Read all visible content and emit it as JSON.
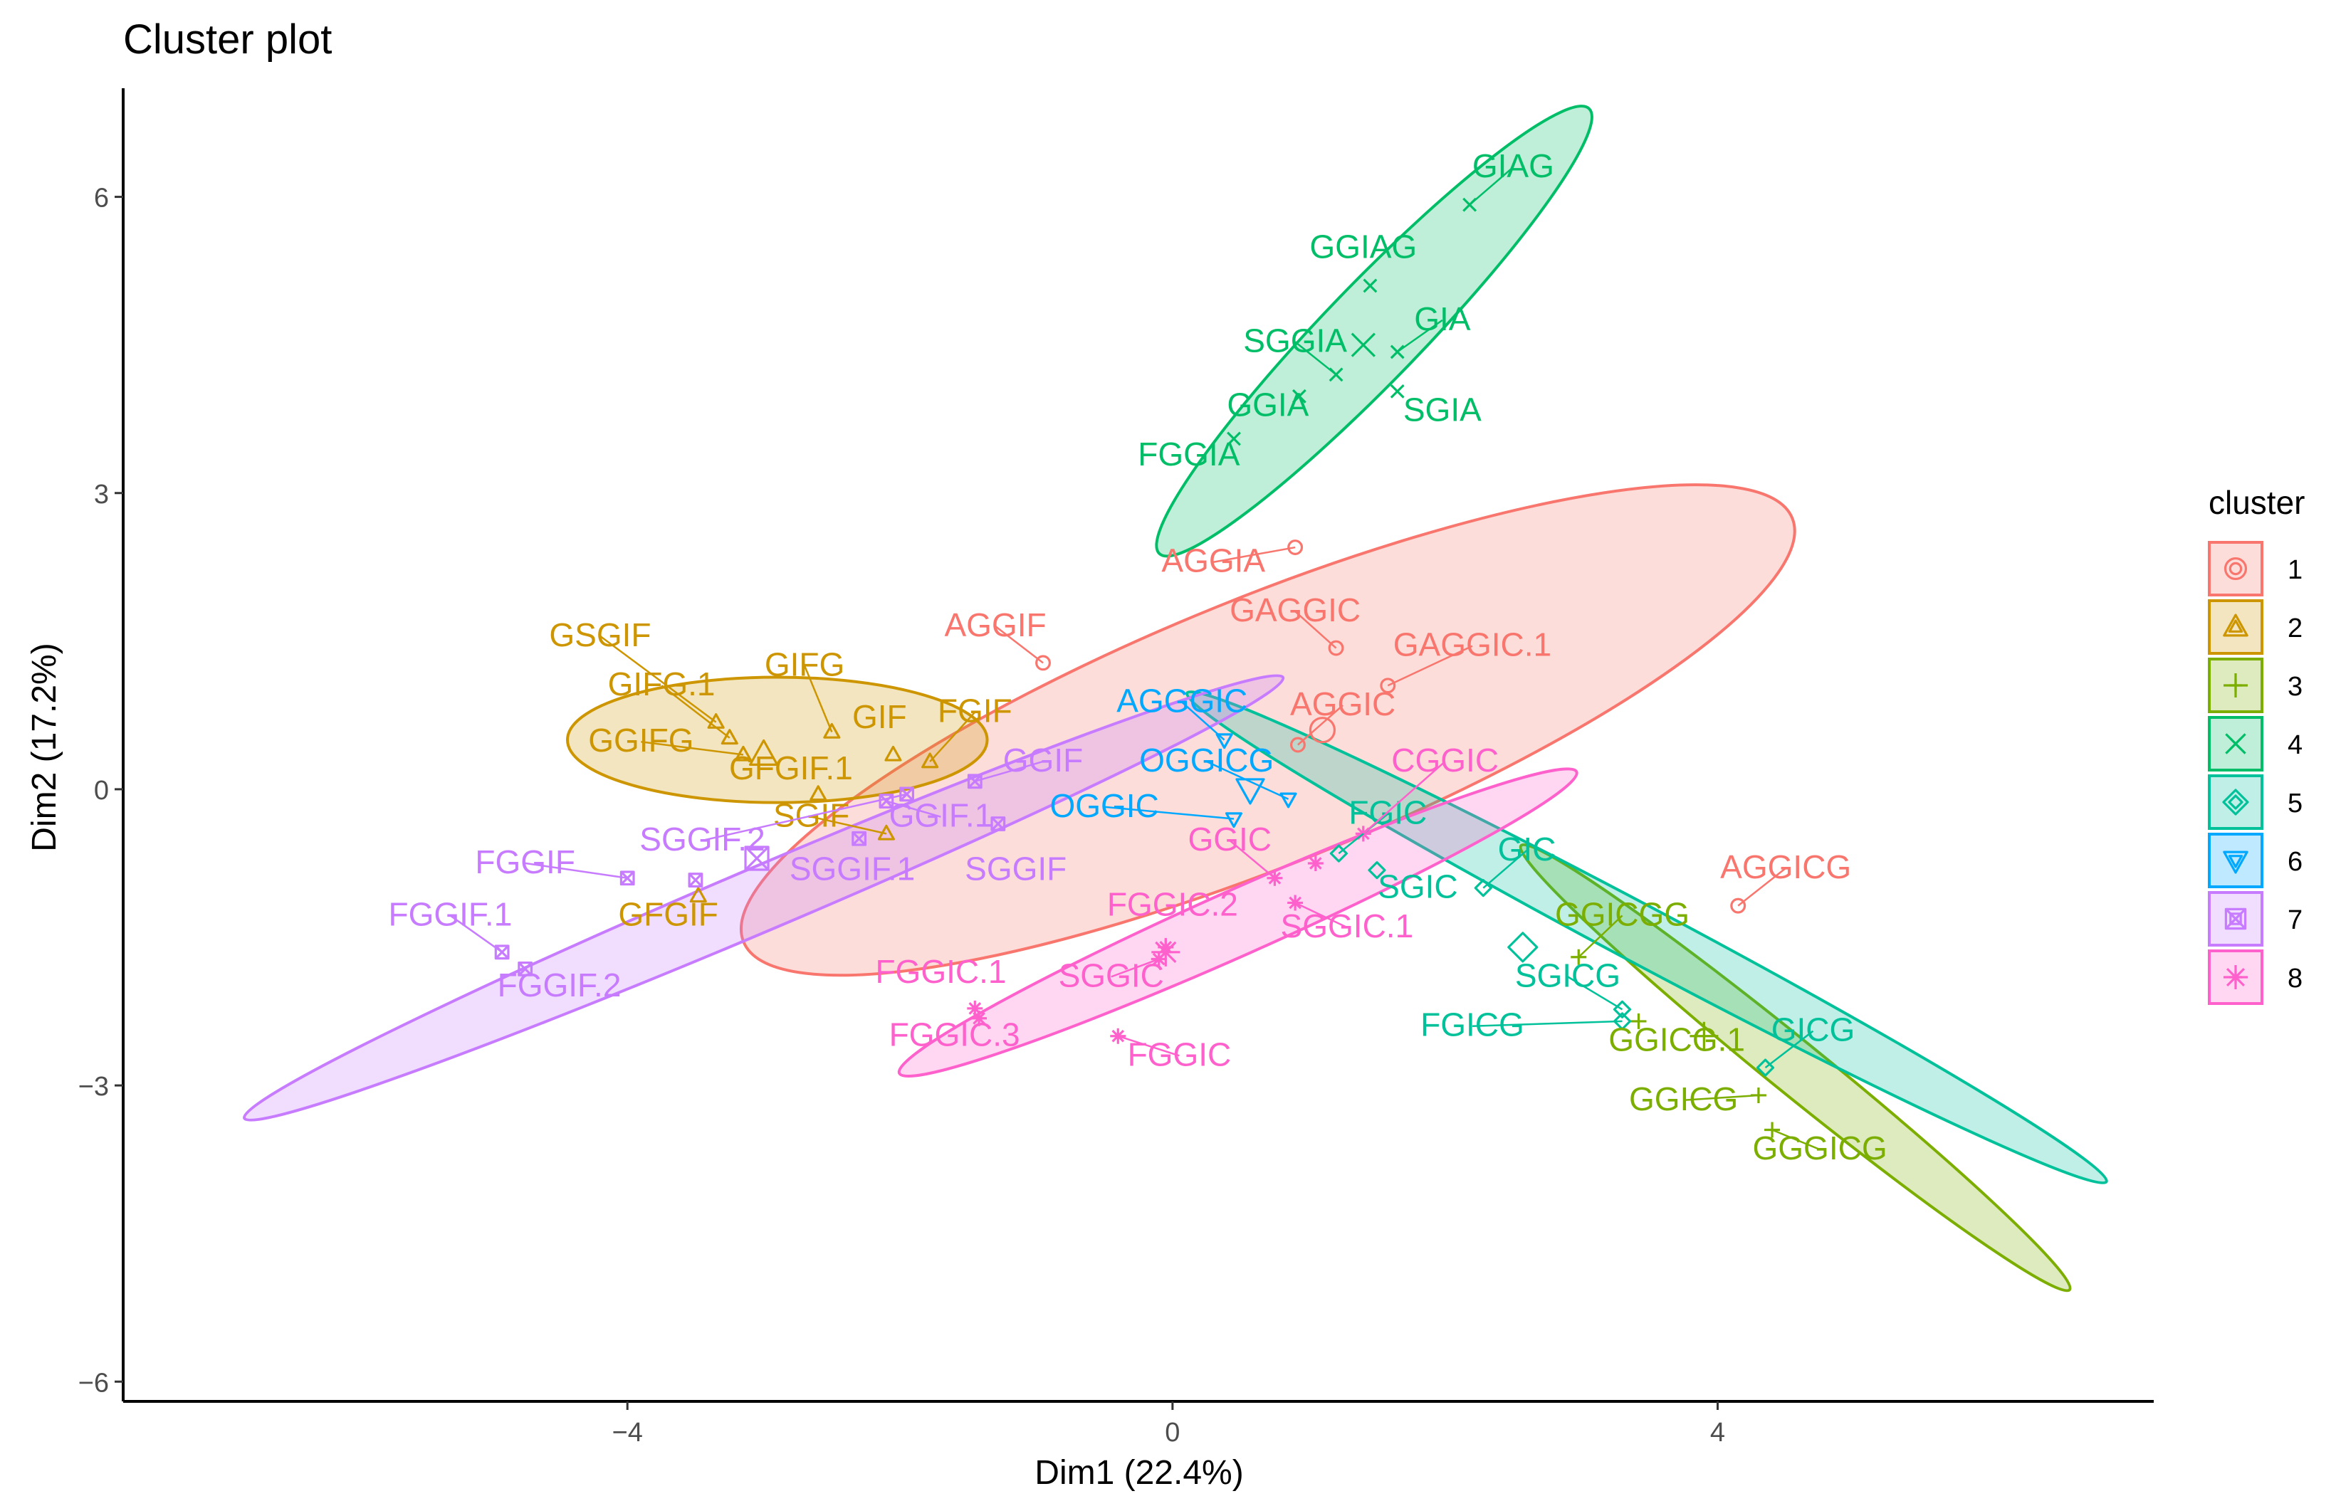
{
  "chart_data": {
    "type": "scatter",
    "title": "Cluster plot",
    "xlabel": "Dim1 (22.4%)",
    "ylabel": "Dim2 (17.2%)",
    "xlim": [
      -7.7,
      7.2
    ],
    "ylim": [
      -6.2,
      7.1
    ],
    "xticks": [
      {
        "v": -4,
        "label": "−4"
      },
      {
        "v": 0,
        "label": "0"
      },
      {
        "v": 4,
        "label": "4"
      }
    ],
    "yticks": [
      {
        "v": 6,
        "label": "6"
      },
      {
        "v": 3,
        "label": "3"
      },
      {
        "v": 0,
        "label": "0"
      },
      {
        "v": -3,
        "label": "−3"
      },
      {
        "v": -6,
        "label": "−6"
      }
    ],
    "legend": {
      "title": "cluster",
      "placement": "right",
      "entries": [
        "1",
        "2",
        "3",
        "4",
        "5",
        "6",
        "7",
        "8"
      ]
    },
    "clusters": [
      {
        "id": "1",
        "color": "#F8766D",
        "shape": "circle",
        "center": [
          1.1,
          0.6
        ],
        "ellipse": {
          "center": [
            0.7,
            0.6
          ],
          "rx": 8.3,
          "ry": 2.7,
          "angle": -22
        },
        "points": [
          {
            "name": "AGGIA",
            "x": 0.9,
            "y": 2.45,
            "lx": 0.3,
            "ly": 2.2
          },
          {
            "name": "AGGIF",
            "x": -0.95,
            "y": 1.28,
            "lx": -1.3,
            "ly": 1.55
          },
          {
            "name": "GAGGIC",
            "x": 1.2,
            "y": 1.43,
            "lx": 0.9,
            "ly": 1.7
          },
          {
            "name": "GAGGIC.1",
            "x": 1.58,
            "y": 1.05,
            "lx": 2.2,
            "ly": 1.35
          },
          {
            "name": "AGGIC",
            "x": 0.92,
            "y": 0.45,
            "lx": 1.25,
            "ly": 0.75
          },
          {
            "name": "AGGICG",
            "x": 4.15,
            "y": -1.18,
            "lx": 4.5,
            "ly": -0.9
          }
        ]
      },
      {
        "id": "2",
        "color": "#CD9600",
        "shape": "triangle",
        "center": [
          -3.0,
          0.35
        ],
        "ellipse": {
          "center": [
            -2.9,
            0.5
          ],
          "rx": 3.08,
          "ry": 1.27,
          "angle": 0
        },
        "points": [
          {
            "name": "GSGIF",
            "x": -3.35,
            "y": 0.68,
            "lx": -4.2,
            "ly": 1.45
          },
          {
            "name": "GIFG.1",
            "x": -3.25,
            "y": 0.52,
            "lx": -3.75,
            "ly": 0.95
          },
          {
            "name": "GIFG",
            "x": -2.5,
            "y": 0.58,
            "lx": -2.7,
            "ly": 1.15
          },
          {
            "name": "GGIFG",
            "x": -3.15,
            "y": 0.35,
            "lx": -3.9,
            "ly": 0.38
          },
          {
            "name": "GIF",
            "x": -2.05,
            "y": 0.35,
            "lx": -2.15,
            "ly": 0.62
          },
          {
            "name": "FGIF",
            "x": -1.78,
            "y": 0.28,
            "lx": -1.45,
            "ly": 0.68
          },
          {
            "name": "GFGIF.1",
            "x": -2.6,
            "y": -0.05,
            "lx": -2.8,
            "ly": 0.1
          },
          {
            "name": "SGIF",
            "x": -2.1,
            "y": -0.45,
            "lx": -2.65,
            "ly": -0.38
          },
          {
            "name": "GFGIF",
            "x": -3.48,
            "y": -1.08,
            "lx": -3.7,
            "ly": -1.38
          }
        ]
      },
      {
        "id": "3",
        "color": "#7CAE00",
        "shape": "plus",
        "center": [
          3.9,
          -2.5
        ],
        "ellipse": {
          "center": [
            4.57,
            -2.82
          ],
          "rx": 5.18,
          "ry": 0.54,
          "angle": 39
        },
        "points": [
          {
            "name": "GGICGG",
            "x": 2.98,
            "y": -1.7,
            "lx": 3.3,
            "ly": -1.38
          },
          {
            "name": "GGICG.1",
            "x": 3.42,
            "y": -2.35,
            "lx": 3.7,
            "ly": -2.65
          },
          {
            "name": "GGICG",
            "x": 4.3,
            "y": -3.1,
            "lx": 3.75,
            "ly": -3.25
          },
          {
            "name": "GGGICG",
            "x": 4.4,
            "y": -3.45,
            "lx": 4.75,
            "ly": -3.75
          }
        ]
      },
      {
        "id": "4",
        "color": "#00BE67",
        "shape": "x",
        "center": [
          1.4,
          4.5
        ],
        "ellipse": {
          "center": [
            1.48,
            4.64
          ],
          "rx": 4.54,
          "ry": 0.98,
          "angle": -46
        },
        "points": [
          {
            "name": "GIAG",
            "x": 2.18,
            "y": 5.92,
            "lx": 2.5,
            "ly": 6.2
          },
          {
            "name": "GGIAG",
            "x": 1.45,
            "y": 5.1,
            "lx": 1.4,
            "ly": 5.38
          },
          {
            "name": "GIA",
            "x": 1.65,
            "y": 4.43,
            "lx": 1.98,
            "ly": 4.65
          },
          {
            "name": "SGGIA",
            "x": 1.2,
            "y": 4.2,
            "lx": 0.9,
            "ly": 4.43
          },
          {
            "name": "SGIA",
            "x": 1.65,
            "y": 4.03,
            "lx": 1.98,
            "ly": 3.73
          },
          {
            "name": "GGIA",
            "x": 0.93,
            "y": 3.98,
            "lx": 0.7,
            "ly": 3.78
          },
          {
            "name": "FGGIA",
            "x": 0.45,
            "y": 3.55,
            "lx": 0.12,
            "ly": 3.28
          }
        ]
      },
      {
        "id": "5",
        "color": "#00C19A",
        "shape": "diamond",
        "center": [
          2.57,
          -1.6
        ],
        "ellipse": {
          "center": [
            3.48,
            -1.5
          ],
          "rx": 7.64,
          "ry": 0.58,
          "angle": 28
        },
        "points": [
          {
            "name": "FGIC",
            "x": 1.22,
            "y": -0.65,
            "lx": 1.58,
            "ly": -0.35
          },
          {
            "name": "GIC",
            "x": 2.28,
            "y": -1.0,
            "lx": 2.6,
            "ly": -0.72
          },
          {
            "name": "SGIC",
            "x": 1.5,
            "y": -0.82,
            "lx": 1.8,
            "ly": -1.1
          },
          {
            "name": "SGICG",
            "x": 3.3,
            "y": -2.23,
            "lx": 2.9,
            "ly": -2.0
          },
          {
            "name": "FGICG",
            "x": 3.3,
            "y": -2.35,
            "lx": 2.2,
            "ly": -2.5
          },
          {
            "name": "GICG",
            "x": 4.35,
            "y": -2.82,
            "lx": 4.7,
            "ly": -2.55
          }
        ]
      },
      {
        "id": "6",
        "color": "#00A9FF",
        "shape": "triangle-down",
        "center": [
          0.57,
          0.0
        ],
        "ellipse": null,
        "points": [
          {
            "name": "AGGGIC",
            "x": 0.38,
            "y": 0.5,
            "lx": 0.07,
            "ly": 0.78
          },
          {
            "name": "OGGICG",
            "x": 0.85,
            "y": -0.1,
            "lx": 0.25,
            "ly": 0.18
          },
          {
            "name": "OGGIC",
            "x": 0.45,
            "y": -0.3,
            "lx": -0.5,
            "ly": -0.28
          }
        ]
      },
      {
        "id": "7",
        "color": "#C77CFF",
        "shape": "square-x",
        "center": [
          -3.05,
          -0.7
        ],
        "ellipse": {
          "center": [
            -3.0,
            -1.1
          ],
          "rx": 8.28,
          "ry": 0.65,
          "angle": -23
        },
        "points": [
          {
            "name": "GGIF",
            "x": -1.45,
            "y": 0.08,
            "lx": -0.95,
            "ly": 0.18
          },
          {
            "name": "GGIF.1",
            "x": -2.1,
            "y": -0.12,
            "lx": -1.7,
            "ly": -0.38
          },
          {
            "name": "SGGIF.2",
            "x": -1.95,
            "y": -0.05,
            "lx": -3.45,
            "ly": -0.62
          },
          {
            "name": "SGGIF",
            "x": -1.28,
            "y": -0.35,
            "lx": -1.15,
            "ly": -0.92
          },
          {
            "name": "SGGIF.1",
            "x": -2.3,
            "y": -0.5,
            "lx": -2.35,
            "ly": -0.92
          },
          {
            "name": "FGGIF",
            "x": -4.0,
            "y": -0.9,
            "lx": -4.75,
            "ly": -0.85
          },
          {
            "name": "FGGIF.1",
            "x": -4.92,
            "y": -1.65,
            "lx": -5.3,
            "ly": -1.38
          },
          {
            "name": "FGGIF.2",
            "x": -4.75,
            "y": -1.82,
            "lx": -4.5,
            "ly": -2.1
          },
          {
            "name": "",
            "x": -3.5,
            "y": -0.92,
            "lx": null,
            "ly": null
          }
        ]
      },
      {
        "id": "8",
        "color": "#FF61CC",
        "shape": "star",
        "center": [
          -0.05,
          -1.65
        ],
        "ellipse": {
          "center": [
            0.48,
            -1.35
          ],
          "rx": 5.44,
          "ry": 0.66,
          "angle": -24
        },
        "points": [
          {
            "name": "CGGIC",
            "x": 1.4,
            "y": -0.45,
            "lx": 2.0,
            "ly": 0.18
          },
          {
            "name": "GGIC",
            "x": 0.75,
            "y": -0.9,
            "lx": 0.42,
            "ly": -0.62
          },
          {
            "name": "SGGIC.1",
            "x": 0.9,
            "y": -1.15,
            "lx": 1.28,
            "ly": -1.5
          },
          {
            "name": "FGGIC.2",
            "x": -0.05,
            "y": -1.6,
            "lx": 0.0,
            "ly": -1.28
          },
          {
            "name": "SGGIC",
            "x": -0.1,
            "y": -1.72,
            "lx": -0.45,
            "ly": -2.0
          },
          {
            "name": "FGGIC.1",
            "x": -1.45,
            "y": -2.22,
            "lx": -1.7,
            "ly": -1.96
          },
          {
            "name": "FGGIC.3",
            "x": -1.42,
            "y": -2.32,
            "lx": -1.6,
            "ly": -2.6
          },
          {
            "name": "FGGIC",
            "x": -0.4,
            "y": -2.5,
            "lx": 0.05,
            "ly": -2.8
          },
          {
            "name": "",
            "x": 1.05,
            "y": -0.75,
            "lx": null,
            "ly": null
          }
        ]
      }
    ]
  }
}
